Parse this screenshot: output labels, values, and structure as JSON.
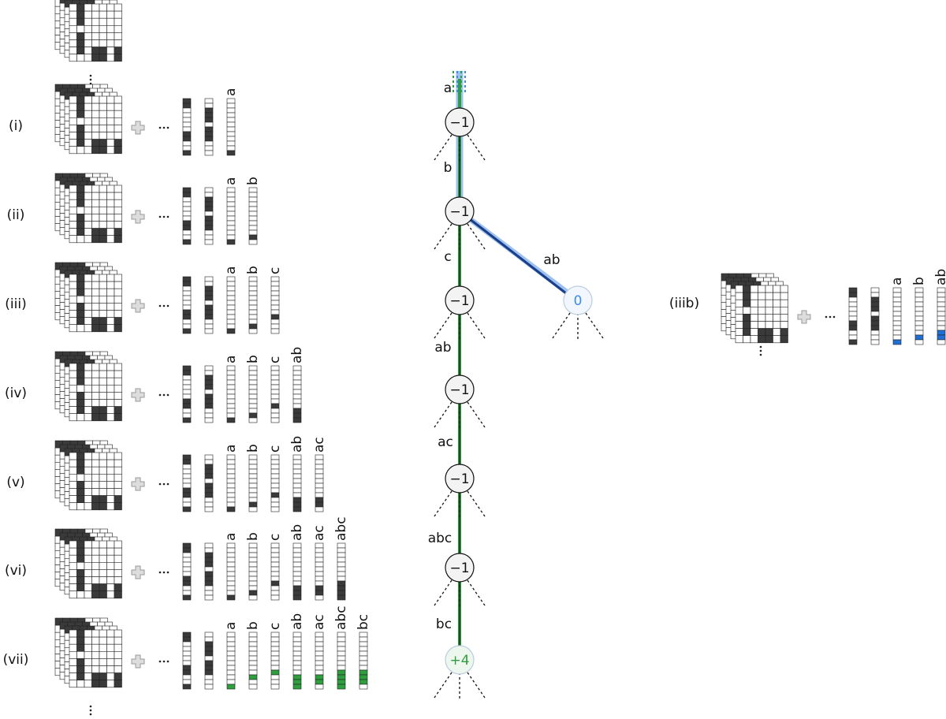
{
  "rows": [
    {
      "label": "(i)",
      "columns": [
        "a"
      ]
    },
    {
      "label": "(ii)",
      "columns": [
        "a",
        "b"
      ]
    },
    {
      "label": "(iii)",
      "columns": [
        "a",
        "b",
        "c"
      ]
    },
    {
      "label": "(iv)",
      "columns": [
        "a",
        "b",
        "c",
        "ab"
      ]
    },
    {
      "label": "(v)",
      "columns": [
        "a",
        "b",
        "c",
        "ab",
        "ac"
      ]
    },
    {
      "label": "(vi)",
      "columns": [
        "a",
        "b",
        "c",
        "ab",
        "ac",
        "abc"
      ]
    },
    {
      "label": "(vii)",
      "columns": [
        "a",
        "b",
        "c",
        "ab",
        "ac",
        "abc",
        "bc"
      ]
    }
  ],
  "tree": {
    "nodes": [
      {
        "label": "−1"
      },
      {
        "label": "−1"
      },
      {
        "label": "−1"
      },
      {
        "label": "−1"
      },
      {
        "label": "−1"
      },
      {
        "label": "−1"
      },
      {
        "label": "+4"
      },
      {
        "label": "0"
      }
    ],
    "edges": [
      {
        "label": "a"
      },
      {
        "label": "b"
      },
      {
        "label": "c"
      },
      {
        "label": "ab"
      },
      {
        "label": "ac"
      },
      {
        "label": "abc"
      },
      {
        "label": "bc"
      },
      {
        "label": "ab"
      }
    ]
  },
  "side": {
    "label": "(iiib)",
    "columns": [
      "a",
      "b",
      "ab"
    ]
  }
}
